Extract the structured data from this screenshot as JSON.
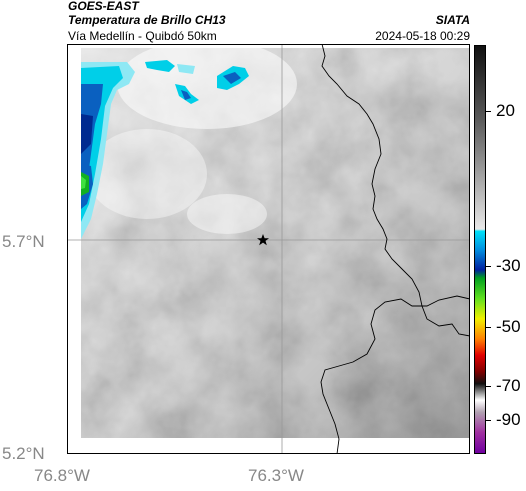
{
  "header": {
    "satellite": "GOES-EAST",
    "product": "Temperatura de Brillo CH13",
    "organization": "SIATA",
    "region": "Vía Medellín - Quibdó 50km",
    "datetime": "2024-05-18 00:29"
  },
  "map": {
    "lat_labels": [
      "5.7°N",
      "5.2°N"
    ],
    "lon_labels": [
      "76.8°W",
      "76.3°W"
    ],
    "marker": "star-marker",
    "colors": {
      "frame": "#000000",
      "gridline": "#999999",
      "border": "#000000",
      "cloud_cyan": "#00d8f0",
      "cloud_blue": "#0030a0",
      "cloud_green": "#10b020"
    }
  },
  "colorbar": {
    "tick_labels": [
      "20",
      "-30",
      "-50",
      "-70",
      "-90"
    ],
    "tick_values": [
      20,
      -30,
      -50,
      -70,
      -90
    ]
  }
}
